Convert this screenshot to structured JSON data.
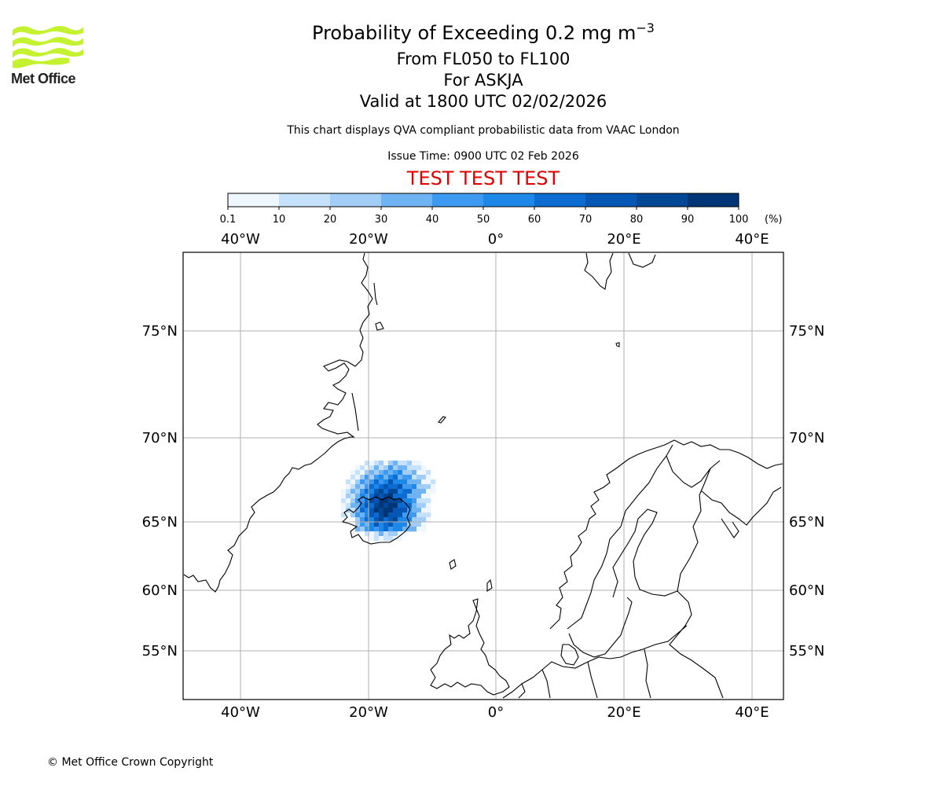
{
  "header": {
    "logo_text": "Met Office",
    "title_main": "Probability of Exceeding 0.2 mg m",
    "title_superscript": "−3",
    "title_levels": "From FL050 to FL100",
    "title_volcano": "For ASKJA",
    "title_valid": "Valid at 1800 UTC 02/02/2026",
    "subtitle": "This chart displays QVA compliant probabilistic data from VAAC London",
    "issue_time": "Issue Time: 0900 UTC 02 Feb 2026",
    "test_banner": "TEST TEST TEST",
    "test_color": "#e00000"
  },
  "colorbar": {
    "tick_labels": [
      "0.1",
      "10",
      "20",
      "30",
      "40",
      "50",
      "60",
      "70",
      "80",
      "90",
      "100"
    ],
    "unit": "(%)",
    "colors": [
      "#eef6ff",
      "#c6e2fb",
      "#a2cdf6",
      "#6fb3f2",
      "#3d9af0",
      "#1e88e8",
      "#0d6cd1",
      "#0656b4",
      "#024795",
      "#023576"
    ]
  },
  "map": {
    "lon_labels": [
      "40°W",
      "20°W",
      "0°",
      "20°E",
      "40°E"
    ],
    "lat_labels": [
      "75°N",
      "70°N",
      "65°N",
      "60°N",
      "55°N"
    ],
    "grid": true,
    "plume_center": "Askja, Iceland (~65°N, 17°W)"
  },
  "footer": {
    "copyright": "© Met Office Crown Copyright"
  }
}
